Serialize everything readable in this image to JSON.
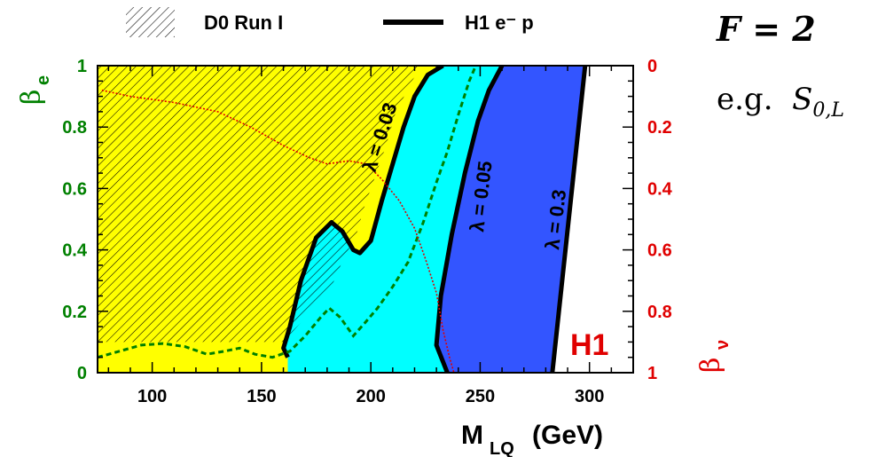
{
  "chart_data": {
    "type": "area",
    "title": "",
    "xlabel": {
      "main": "M",
      "sub": "LQ",
      "unit": "(GeV)"
    },
    "ylabel_left": {
      "main": "β",
      "sub": "e"
    },
    "ylabel_right": {
      "main": "β",
      "sub": "ν"
    },
    "xlim": [
      75,
      320
    ],
    "ylim_left": [
      0,
      1
    ],
    "ylim_right": [
      1,
      0
    ],
    "x_ticks": [
      "100",
      "150",
      "200",
      "250",
      "300"
    ],
    "x_tick_values": [
      100,
      150,
      200,
      250,
      300
    ],
    "y_left_ticks": [
      "0",
      "0.2",
      "0.4",
      "0.6",
      "0.8",
      "1"
    ],
    "y_left_tick_values": [
      0,
      0.2,
      0.4,
      0.6,
      0.8,
      1
    ],
    "y_right_ticks": [
      "1",
      "0.8",
      "0.6",
      "0.4",
      "0.2",
      "0"
    ],
    "legend": [
      {
        "label": "D0 Run I",
        "style": "hatched"
      },
      {
        "label": "H1 e⁻ p",
        "style": "thick-line"
      }
    ],
    "annotations": {
      "lambda_003": "λ = 0.03",
      "lambda_005": "λ = 0.05",
      "lambda_03": "λ = 0.3",
      "experiment": "H1"
    },
    "colors": {
      "region_below_0_03": "#ffff00",
      "region_0_03_to_0_05": "#00ffff",
      "region_0_05_to_0_3": "#3355ff",
      "boundary": "#000000",
      "left_axis": "#008000",
      "right_axis": "#e00000",
      "h1_label": "#e00000"
    },
    "series": [
      {
        "name": "λ = 0.03",
        "points": [
          [
            162,
            0.05
          ],
          [
            160,
            0.08
          ],
          [
            163,
            0.15
          ],
          [
            168,
            0.3
          ],
          [
            175,
            0.44
          ],
          [
            182,
            0.49
          ],
          [
            187,
            0.46
          ],
          [
            192,
            0.4
          ],
          [
            195,
            0.39
          ],
          [
            200,
            0.43
          ],
          [
            205,
            0.56
          ],
          [
            210,
            0.68
          ],
          [
            215,
            0.8
          ],
          [
            220,
            0.9
          ],
          [
            226,
            0.97
          ],
          [
            233,
            1.0
          ]
        ]
      },
      {
        "name": "λ = 0.05",
        "points": [
          [
            235,
            0
          ],
          [
            230,
            0.09
          ],
          [
            232,
            0.25
          ],
          [
            237,
            0.45
          ],
          [
            243,
            0.65
          ],
          [
            249,
            0.82
          ],
          [
            254,
            0.92
          ],
          [
            260,
            1.0
          ]
        ]
      },
      {
        "name": "λ = 0.3",
        "points": [
          [
            283,
            0
          ],
          [
            286,
            0.2
          ],
          [
            289,
            0.4
          ],
          [
            292,
            0.6
          ],
          [
            295,
            0.8
          ],
          [
            298,
            1.0
          ]
        ]
      },
      {
        "name": "D0 Run I",
        "points": [
          [
            75,
            1.0
          ],
          [
            223,
            1.0
          ],
          [
            218,
            0.94
          ],
          [
            211,
            0.84
          ],
          [
            207,
            0.74
          ],
          [
            202,
            0.64
          ],
          [
            197,
            0.54
          ],
          [
            193,
            0.44
          ],
          [
            188,
            0.38
          ],
          [
            182,
            0.28
          ],
          [
            176,
            0.24
          ],
          [
            170,
            0.18
          ],
          [
            165,
            0.14
          ],
          [
            160,
            0.1
          ],
          [
            75,
            0.1
          ]
        ]
      },
      {
        "name": "β_e",
        "points": [
          [
            75,
            0.05
          ],
          [
            85,
            0.07
          ],
          [
            95,
            0.09
          ],
          [
            105,
            0.095
          ],
          [
            115,
            0.085
          ],
          [
            125,
            0.06
          ],
          [
            133,
            0.07
          ],
          [
            140,
            0.08
          ],
          [
            147,
            0.06
          ],
          [
            155,
            0.05
          ],
          [
            163,
            0.07
          ],
          [
            170,
            0.12
          ],
          [
            177,
            0.18
          ],
          [
            181,
            0.21
          ],
          [
            186,
            0.18
          ],
          [
            192,
            0.12
          ],
          [
            197,
            0.16
          ],
          [
            203,
            0.21
          ],
          [
            210,
            0.28
          ],
          [
            217,
            0.36
          ],
          [
            224,
            0.49
          ],
          [
            230,
            0.62
          ],
          [
            235,
            0.72
          ],
          [
            240,
            0.84
          ],
          [
            245,
            0.95
          ],
          [
            248,
            1.0
          ]
        ]
      },
      {
        "name": "β_ν",
        "points": [
          [
            77,
            0.92
          ],
          [
            90,
            0.9
          ],
          [
            110,
            0.88
          ],
          [
            130,
            0.85
          ],
          [
            145,
            0.8
          ],
          [
            160,
            0.74
          ],
          [
            172,
            0.7
          ],
          [
            180,
            0.68
          ],
          [
            190,
            0.69
          ],
          [
            198,
            0.68
          ],
          [
            205,
            0.63
          ],
          [
            213,
            0.56
          ],
          [
            220,
            0.47
          ],
          [
            225,
            0.37
          ],
          [
            230,
            0.26
          ],
          [
            233,
            0.14
          ],
          [
            236,
            0.05
          ],
          [
            238,
            0
          ]
        ]
      }
    ]
  }
}
